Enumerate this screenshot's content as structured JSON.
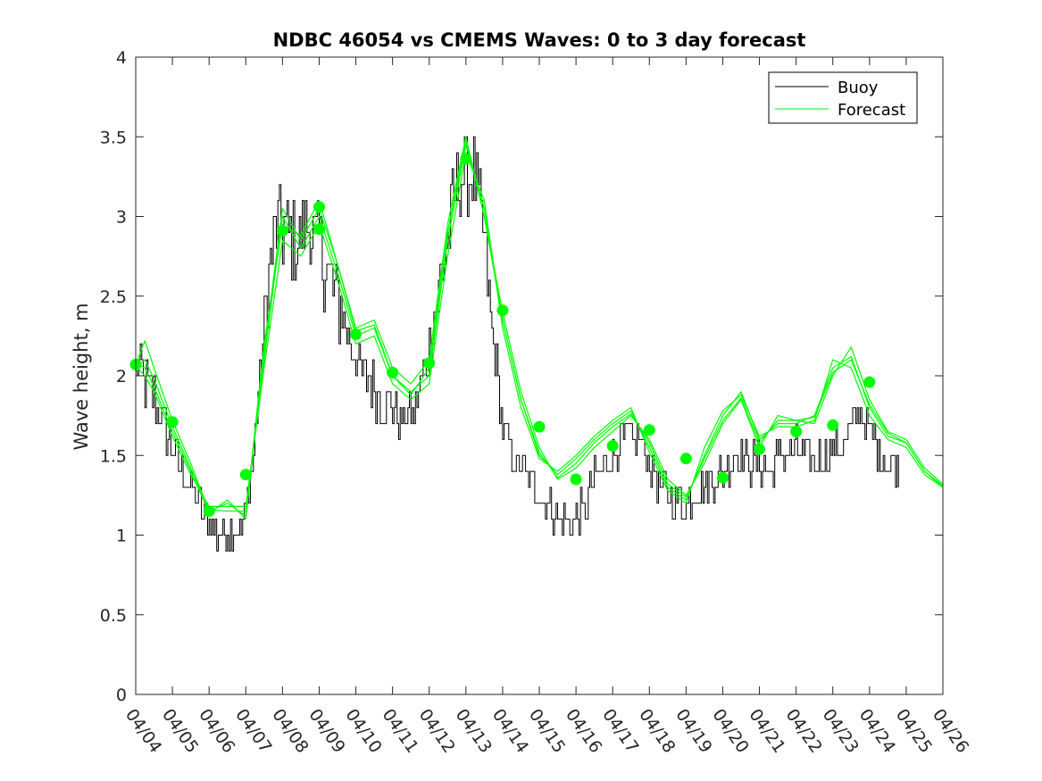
{
  "chart_data": {
    "type": "line",
    "title": "NDBC 46054 vs CMEMS Waves: 0 to 3 day forecast",
    "xlabel": "",
    "ylabel": "Wave height, m",
    "xlim": [
      0,
      22
    ],
    "ylim": [
      0,
      4
    ],
    "yticks": [
      0,
      0.5,
      1,
      1.5,
      2,
      2.5,
      3,
      3.5,
      4
    ],
    "ytick_labels": [
      "0",
      "0.5",
      "1",
      "1.5",
      "2",
      "2.5",
      "3",
      "3.5",
      "4"
    ],
    "xtick_labels": [
      "04/04",
      "04/05",
      "04/06",
      "04/07",
      "04/08",
      "04/09",
      "04/10",
      "04/11",
      "04/12",
      "04/13",
      "04/14",
      "04/15",
      "04/16",
      "04/17",
      "04/18",
      "04/19",
      "04/20",
      "04/21",
      "04/22",
      "04/23",
      "04/24",
      "04/25",
      "04/26"
    ],
    "legend": {
      "placement": "top-right",
      "entries": [
        "Buoy",
        "Forecast"
      ]
    },
    "colors": {
      "buoy": "#000000",
      "forecast": "#00ff00"
    },
    "grid": false,
    "buoy_anchors": [
      [
        0,
        2.05
      ],
      [
        0.3,
        1.95
      ],
      [
        0.6,
        1.8
      ],
      [
        0.9,
        1.6
      ],
      [
        1.2,
        1.45
      ],
      [
        1.5,
        1.3
      ],
      [
        1.8,
        1.15
      ],
      [
        2.2,
        1.0
      ],
      [
        2.6,
        1.02
      ],
      [
        2.9,
        1.05
      ],
      [
        3.0,
        1.15
      ],
      [
        3.15,
        1.4
      ],
      [
        3.35,
        1.9
      ],
      [
        3.6,
        2.6
      ],
      [
        3.85,
        2.95
      ],
      [
        4.1,
        2.9
      ],
      [
        4.4,
        2.85
      ],
      [
        4.7,
        2.95
      ],
      [
        5.0,
        2.8
      ],
      [
        5.3,
        2.6
      ],
      [
        5.6,
        2.4
      ],
      [
        6.0,
        2.1
      ],
      [
        6.4,
        1.95
      ],
      [
        6.8,
        1.85
      ],
      [
        7.2,
        1.7
      ],
      [
        7.6,
        1.8
      ],
      [
        8.0,
        2.2
      ],
      [
        8.3,
        2.6
      ],
      [
        8.6,
        3.0
      ],
      [
        8.9,
        3.3
      ],
      [
        9.2,
        3.25
      ],
      [
        9.45,
        2.9
      ],
      [
        9.7,
        2.3
      ],
      [
        10.0,
        1.7
      ],
      [
        10.3,
        1.45
      ],
      [
        10.7,
        1.35
      ],
      [
        11.1,
        1.25
      ],
      [
        11.5,
        1.1
      ],
      [
        11.9,
        1.05
      ],
      [
        12.2,
        1.15
      ],
      [
        12.5,
        1.35
      ],
      [
        12.8,
        1.45
      ],
      [
        13.1,
        1.55
      ],
      [
        13.4,
        1.6
      ],
      [
        13.7,
        1.6
      ],
      [
        14.0,
        1.45
      ],
      [
        14.3,
        1.3
      ],
      [
        14.6,
        1.25
      ],
      [
        14.9,
        1.2
      ],
      [
        15.2,
        1.25
      ],
      [
        15.5,
        1.3
      ],
      [
        15.8,
        1.35
      ],
      [
        16.1,
        1.45
      ],
      [
        16.4,
        1.5
      ],
      [
        16.7,
        1.45
      ],
      [
        17.0,
        1.45
      ],
      [
        17.3,
        1.4
      ],
      [
        17.6,
        1.5
      ],
      [
        17.9,
        1.55
      ],
      [
        18.2,
        1.5
      ],
      [
        18.5,
        1.45
      ],
      [
        18.8,
        1.5
      ],
      [
        19.1,
        1.55
      ],
      [
        19.4,
        1.6
      ],
      [
        19.7,
        1.8
      ],
      [
        19.9,
        1.7
      ],
      [
        20.2,
        1.55
      ],
      [
        20.5,
        1.45
      ],
      [
        20.8,
        1.45
      ]
    ],
    "forecast_series": [
      {
        "name": "Forecast 1",
        "x": [
          0,
          0.25,
          0.5,
          1,
          1.5,
          2,
          2.5,
          3,
          3.5,
          4,
          4.5,
          5,
          5.5,
          6,
          6.5,
          7,
          7.5,
          8,
          8.5,
          9,
          9.5,
          10,
          10.5,
          11,
          11.5,
          12,
          12.5,
          13,
          13.5,
          14,
          14.5,
          15,
          15.5,
          16,
          16.5,
          17,
          17.5,
          18,
          18.5,
          19,
          19.5,
          20,
          20.5,
          21,
          21.5,
          22
        ],
        "y": [
          2.07,
          2.22,
          2.05,
          1.72,
          1.45,
          1.15,
          1.2,
          1.12,
          2.2,
          2.95,
          2.88,
          3.1,
          2.7,
          2.3,
          2.35,
          2.05,
          1.95,
          2.1,
          2.95,
          3.5,
          3.0,
          2.4,
          1.9,
          1.55,
          1.35,
          1.42,
          1.55,
          1.65,
          1.75,
          1.6,
          1.35,
          1.25,
          1.45,
          1.7,
          1.85,
          1.55,
          1.75,
          1.72,
          1.7,
          2.0,
          2.18,
          1.85,
          1.65,
          1.6,
          1.42,
          1.32
        ]
      },
      {
        "name": "Forecast 2",
        "x": [
          0,
          0.25,
          0.5,
          1,
          1.5,
          2,
          2.5,
          3,
          3.5,
          4,
          4.5,
          5,
          5.5,
          6,
          6.5,
          7,
          7.5,
          8,
          8.5,
          9,
          9.5,
          10,
          10.5,
          11,
          11.5,
          12,
          12.5,
          13,
          13.5,
          14,
          14.5,
          15,
          15.5,
          16,
          16.5,
          17,
          17.5,
          18,
          18.5,
          19,
          19.5,
          20,
          20.5,
          21,
          21.5,
          22
        ],
        "y": [
          2.05,
          2.1,
          1.98,
          1.68,
          1.42,
          1.16,
          1.15,
          1.15,
          2.1,
          3.0,
          2.8,
          3.0,
          2.65,
          2.25,
          2.3,
          2.0,
          1.9,
          2.0,
          2.85,
          3.45,
          3.05,
          2.35,
          1.85,
          1.5,
          1.38,
          1.48,
          1.6,
          1.7,
          1.78,
          1.55,
          1.3,
          1.22,
          1.5,
          1.75,
          1.9,
          1.6,
          1.7,
          1.7,
          1.75,
          2.05,
          2.12,
          1.8,
          1.62,
          1.58,
          1.4,
          1.3
        ]
      },
      {
        "name": "Forecast 3",
        "x": [
          0,
          0.25,
          0.5,
          1,
          1.5,
          2,
          2.5,
          3,
          3.5,
          4,
          4.5,
          5,
          5.5,
          6,
          6.5,
          7,
          7.5,
          8,
          8.5,
          9,
          9.5,
          10,
          10.5,
          11,
          11.5,
          12,
          12.5,
          13,
          13.5,
          14,
          14.5,
          15,
          15.5,
          16,
          16.5,
          17,
          17.5,
          18,
          18.5,
          19,
          19.5,
          20,
          20.5,
          21,
          21.5,
          22
        ],
        "y": [
          2.06,
          2.0,
          1.9,
          1.62,
          1.38,
          1.18,
          1.18,
          1.18,
          2.05,
          2.85,
          2.75,
          2.95,
          2.6,
          2.2,
          2.25,
          1.95,
          1.85,
          1.95,
          2.75,
          3.4,
          3.1,
          2.3,
          1.8,
          1.48,
          1.4,
          1.5,
          1.62,
          1.72,
          1.8,
          1.52,
          1.28,
          1.2,
          1.55,
          1.78,
          1.88,
          1.62,
          1.68,
          1.68,
          1.72,
          2.1,
          2.05,
          1.75,
          1.6,
          1.55,
          1.38,
          1.3
        ]
      },
      {
        "name": "Forecast 4",
        "x": [
          0,
          0.25,
          0.5,
          1,
          1.5,
          2,
          2.5,
          3,
          3.5,
          4,
          4.5,
          5,
          5.5,
          6,
          6.5,
          7,
          7.5,
          8,
          8.5,
          9,
          9.5,
          10,
          10.5,
          11,
          11.5,
          12,
          12.5,
          13,
          13.5,
          14,
          14.5,
          15,
          15.5,
          16,
          16.5,
          17,
          17.5,
          18,
          18.5,
          19,
          19.5,
          20,
          20.5,
          21,
          21.5,
          22
        ],
        "y": [
          2.08,
          2.05,
          1.93,
          1.65,
          1.4,
          1.14,
          1.22,
          1.1,
          2.15,
          3.05,
          2.85,
          3.05,
          2.7,
          2.28,
          2.32,
          2.0,
          1.88,
          2.05,
          2.9,
          3.48,
          3.0,
          2.35,
          1.85,
          1.52,
          1.36,
          1.45,
          1.58,
          1.68,
          1.76,
          1.58,
          1.32,
          1.24,
          1.48,
          1.72,
          1.86,
          1.58,
          1.72,
          1.72,
          1.74,
          2.02,
          2.1,
          1.82,
          1.64,
          1.58,
          1.4,
          1.31
        ]
      }
    ],
    "forecast_markers": [
      [
        0,
        2.07
      ],
      [
        1,
        1.71
      ],
      [
        2,
        1.15
      ],
      [
        3,
        1.38
      ],
      [
        4,
        2.91
      ],
      [
        5,
        3.06
      ],
      [
        5,
        2.92
      ],
      [
        6,
        2.26
      ],
      [
        7,
        2.02
      ],
      [
        8,
        2.08
      ],
      [
        9,
        3.36
      ],
      [
        10,
        2.41
      ],
      [
        11,
        1.68
      ],
      [
        12,
        1.35
      ],
      [
        13,
        1.56
      ],
      [
        14,
        1.66
      ],
      [
        15,
        1.48
      ],
      [
        16,
        1.36
      ],
      [
        17,
        1.54
      ],
      [
        18,
        1.65
      ],
      [
        19,
        1.69
      ],
      [
        20,
        1.96
      ]
    ]
  }
}
